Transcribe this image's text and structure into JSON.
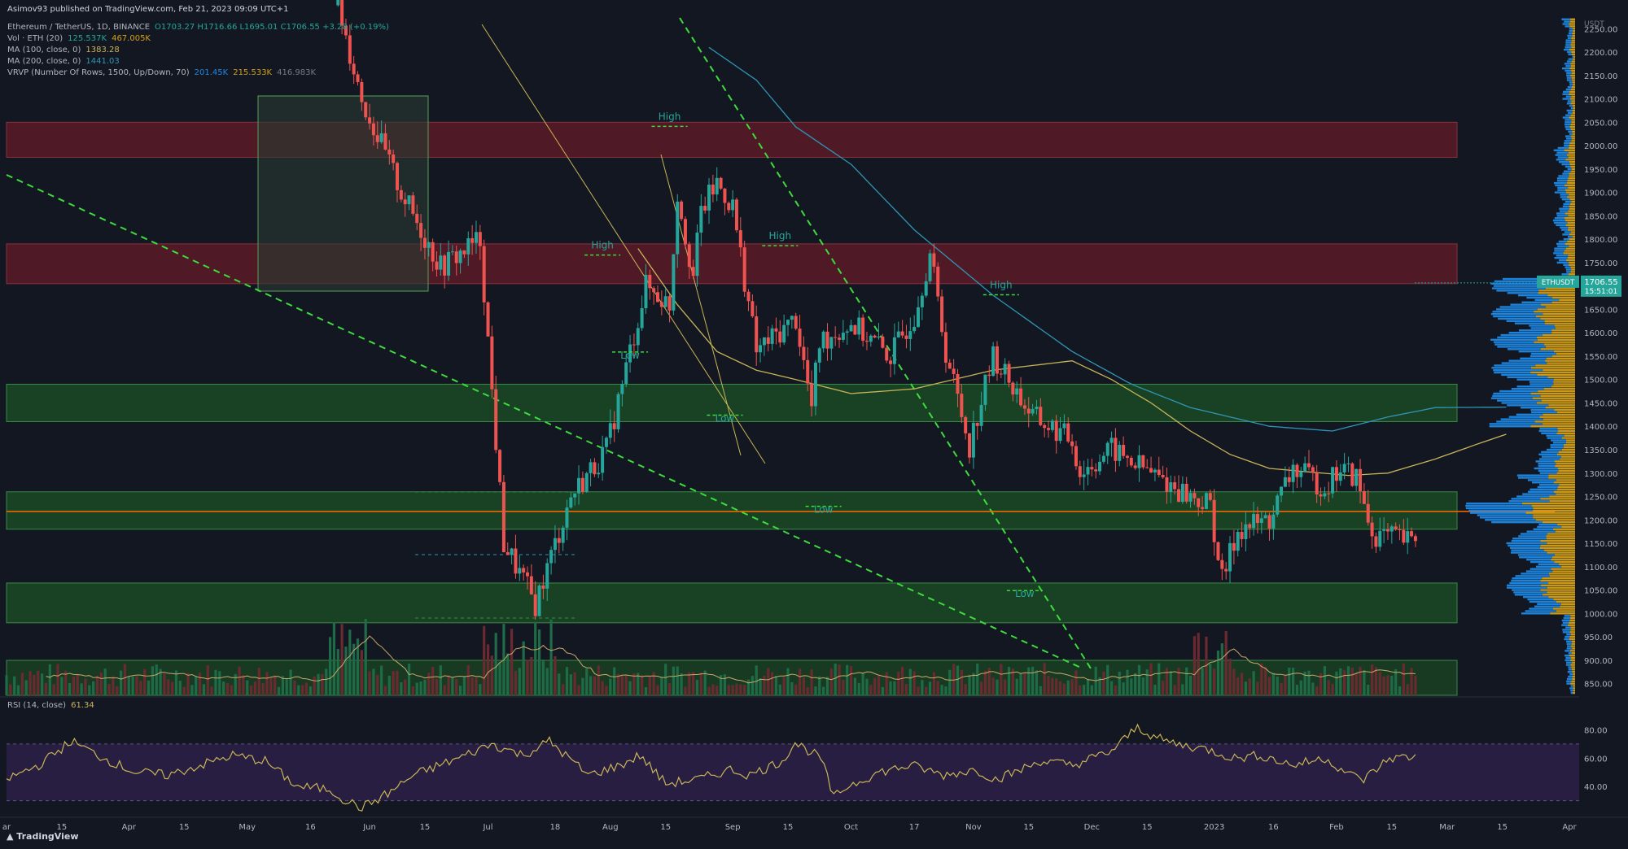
{
  "publisher": "Asimov93 published on TradingView.com, Feb 21, 2023 09:09 UTC+1",
  "symbol": {
    "title": "Ethereum / TetherUS, 1D, BINANCE",
    "ohlc": "O1703.27 H1716.66 L1695.01 C1706.55 +3.28 (+0.19%)",
    "ticker": "ETHUSDT",
    "last_price": "1706.55",
    "countdown": "15:51:01"
  },
  "indicators": {
    "vol": {
      "label": "Vol · ETH (20)",
      "v1": "125.537K",
      "v2": "467.005K"
    },
    "ma100": {
      "label": "MA (100, close, 0)",
      "value": "1383.28"
    },
    "ma200": {
      "label": "MA (200, close, 0)",
      "value": "1441.03"
    },
    "vrvp": {
      "label": "VRVP (Number Of Rows, 1500, Up/Down, 70)",
      "v1": "201.45K",
      "v2": "215.533K",
      "v3": "416.983K"
    },
    "rsi": {
      "label": "RSI (14, close)",
      "value": "61.34"
    }
  },
  "branding": "TradingView",
  "colors": {
    "background": "#131722",
    "up": "#26a69a",
    "down": "#ef5350",
    "ma100": "#c9b458",
    "ma200": "#2e96b6",
    "trendline": "#3ddc3d",
    "rsi": "#c9b458",
    "rsi_band": "#2a1f45",
    "resistance_zone": "#5a1a26",
    "support_zone": "#1b4a24",
    "poc_line": "#ff6d00",
    "vp_up": "#1e88e5",
    "vp_down": "#d4a017"
  },
  "chart_data": {
    "type": "candlestick",
    "price_axis": {
      "unit": "USDT",
      "labels": [
        "2250.00",
        "2200.00",
        "2150.00",
        "2100.00",
        "2050.00",
        "2000.00",
        "1950.00",
        "1900.00",
        "1850.00",
        "1800.00",
        "1750.00",
        "1700.00",
        "1650.00",
        "1600.00",
        "1550.00",
        "1500.00",
        "1450.00",
        "1400.00",
        "1350.00",
        "1300.00",
        "1250.00",
        "1200.00",
        "1150.00",
        "1100.00",
        "1050.00",
        "1000.00",
        "950.00",
        "900.00",
        "850.00"
      ],
      "range": [
        825,
        2280
      ]
    },
    "time_axis": {
      "labels": [
        "ar",
        "15",
        "Apr",
        "15",
        "May",
        "16",
        "Jun",
        "15",
        "Jul",
        "18",
        "Aug",
        "15",
        "Sep",
        "15",
        "Oct",
        "17",
        "Nov",
        "15",
        "Dec",
        "15",
        "2023",
        "16",
        "Feb",
        "15",
        "Mar",
        "15",
        "Apr"
      ],
      "label_days": [
        0,
        14,
        31,
        45,
        61,
        77,
        92,
        106,
        122,
        139,
        153,
        167,
        184,
        198,
        214,
        230,
        245,
        259,
        275,
        289,
        306,
        321,
        337,
        351,
        365,
        379,
        396
      ],
      "last_candle_day": 357
    },
    "candle_anchors_day_price": [
      [
        84,
        2300
      ],
      [
        90,
        2100
      ],
      [
        100,
        1900
      ],
      [
        110,
        1740
      ],
      [
        120,
        1800
      ],
      [
        126,
        1150
      ],
      [
        134,
        1020
      ],
      [
        143,
        1250
      ],
      [
        152,
        1350
      ],
      [
        158,
        1560
      ],
      [
        162,
        1700
      ],
      [
        168,
        1660
      ],
      [
        170,
        1900
      ],
      [
        174,
        1720
      ],
      [
        176,
        1860
      ],
      [
        180,
        1920
      ],
      [
        184,
        1870
      ],
      [
        190,
        1560
      ],
      [
        200,
        1630
      ],
      [
        204,
        1440
      ],
      [
        206,
        1580
      ],
      [
        214,
        1620
      ],
      [
        224,
        1550
      ],
      [
        230,
        1640
      ],
      [
        234,
        1770
      ],
      [
        238,
        1560
      ],
      [
        244,
        1360
      ],
      [
        250,
        1550
      ],
      [
        260,
        1420
      ],
      [
        270,
        1370
      ],
      [
        272,
        1300
      ],
      [
        280,
        1350
      ],
      [
        292,
        1290
      ],
      [
        300,
        1250
      ],
      [
        305,
        1230
      ],
      [
        308,
        1070
      ],
      [
        312,
        1180
      ],
      [
        320,
        1200
      ],
      [
        326,
        1310
      ],
      [
        334,
        1270
      ],
      [
        338,
        1310
      ],
      [
        342,
        1290
      ],
      [
        346,
        1170
      ],
      [
        352,
        1160
      ],
      [
        356,
        1150
      ],
      [
        362,
        1210
      ],
      [
        372,
        1320
      ],
      [
        380,
        1530
      ],
      [
        388,
        1560
      ],
      [
        392,
        1630
      ],
      [
        396,
        1650
      ],
      [
        402,
        1560
      ],
      [
        408,
        1680
      ],
      [
        414,
        1630
      ],
      [
        420,
        1670
      ],
      [
        426,
        1540
      ],
      [
        432,
        1520
      ],
      [
        436,
        1660
      ],
      [
        440,
        1700
      ],
      [
        444,
        1700
      ]
    ],
    "ma100_anchors_day_price": [
      [
        160,
        1780
      ],
      [
        170,
        1660
      ],
      [
        180,
        1560
      ],
      [
        190,
        1520
      ],
      [
        200,
        1500
      ],
      [
        214,
        1470
      ],
      [
        230,
        1480
      ],
      [
        250,
        1520
      ],
      [
        270,
        1540
      ],
      [
        280,
        1500
      ],
      [
        290,
        1450
      ],
      [
        300,
        1390
      ],
      [
        310,
        1340
      ],
      [
        320,
        1310
      ],
      [
        340,
        1295
      ],
      [
        350,
        1300
      ],
      [
        362,
        1330
      ],
      [
        372,
        1360
      ],
      [
        380,
        1383
      ]
    ],
    "ma200_anchors_day_price": [
      [
        178,
        2210
      ],
      [
        190,
        2140
      ],
      [
        200,
        2040
      ],
      [
        214,
        1960
      ],
      [
        230,
        1820
      ],
      [
        250,
        1680
      ],
      [
        270,
        1560
      ],
      [
        285,
        1490
      ],
      [
        300,
        1440
      ],
      [
        320,
        1400
      ],
      [
        336,
        1390
      ],
      [
        350,
        1420
      ],
      [
        362,
        1440
      ],
      [
        380,
        1441
      ]
    ],
    "zones": [
      {
        "kind": "resistance",
        "from": 1975,
        "to": 2050
      },
      {
        "kind": "resistance",
        "from": 1705,
        "to": 1790
      },
      {
        "kind": "support",
        "from": 1410,
        "to": 1490
      },
      {
        "kind": "support",
        "from": 1180,
        "to": 1260
      },
      {
        "kind": "support",
        "from": 980,
        "to": 1065
      }
    ],
    "poc_price": 1218,
    "annotations": [
      {
        "text": "High",
        "day": 151,
        "price": 1780
      },
      {
        "text": "Low",
        "day": 158,
        "price": 1545
      },
      {
        "text": "High",
        "day": 168,
        "price": 2055
      },
      {
        "text": "Low",
        "day": 182,
        "price": 1410
      },
      {
        "text": "High",
        "day": 196,
        "price": 1800
      },
      {
        "text": "Low",
        "day": 207,
        "price": 1215
      },
      {
        "text": "High",
        "day": 252,
        "price": 1695
      },
      {
        "text": "Low",
        "day": 258,
        "price": 1035
      }
    ],
    "rsi_axis": {
      "labels": [
        "80.00",
        "60.00",
        "40.00"
      ],
      "band": [
        30,
        70
      ]
    },
    "rsi_anchors_day_value": [
      [
        0,
        45
      ],
      [
        10,
        55
      ],
      [
        20,
        72
      ],
      [
        30,
        60
      ],
      [
        40,
        50
      ],
      [
        50,
        48
      ],
      [
        60,
        55
      ],
      [
        70,
        62
      ],
      [
        80,
        58
      ],
      [
        90,
        40
      ],
      [
        100,
        38
      ],
      [
        105,
        30
      ],
      [
        110,
        25
      ],
      [
        118,
        35
      ],
      [
        126,
        48
      ],
      [
        134,
        55
      ],
      [
        140,
        60
      ],
      [
        150,
        70
      ],
      [
        160,
        62
      ],
      [
        168,
        72
      ],
      [
        174,
        60
      ],
      [
        180,
        48
      ],
      [
        190,
        55
      ],
      [
        196,
        62
      ],
      [
        204,
        42
      ],
      [
        214,
        45
      ],
      [
        224,
        52
      ],
      [
        230,
        48
      ],
      [
        240,
        58
      ],
      [
        244,
        71
      ],
      [
        252,
        60
      ],
      [
        256,
        32
      ],
      [
        260,
        40
      ],
      [
        270,
        50
      ],
      [
        280,
        55
      ],
      [
        290,
        48
      ],
      [
        300,
        52
      ],
      [
        306,
        45
      ],
      [
        312,
        50
      ],
      [
        320,
        58
      ],
      [
        330,
        55
      ],
      [
        342,
        65
      ],
      [
        350,
        82
      ],
      [
        356,
        74
      ],
      [
        362,
        70
      ],
      [
        372,
        66
      ],
      [
        380,
        60
      ],
      [
        388,
        62
      ],
      [
        398,
        55
      ],
      [
        408,
        60
      ],
      [
        416,
        48
      ],
      [
        420,
        45
      ],
      [
        428,
        60
      ],
      [
        436,
        61
      ]
    ]
  }
}
